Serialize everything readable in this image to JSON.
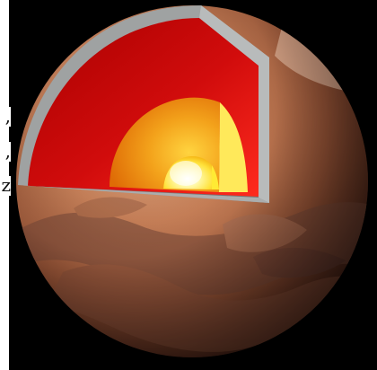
{
  "side_text": {
    "line1": ",",
    "line2": ",",
    "line3": "z"
  },
  "icons": {
    "planet": "mars-cutaway-icon"
  }
}
